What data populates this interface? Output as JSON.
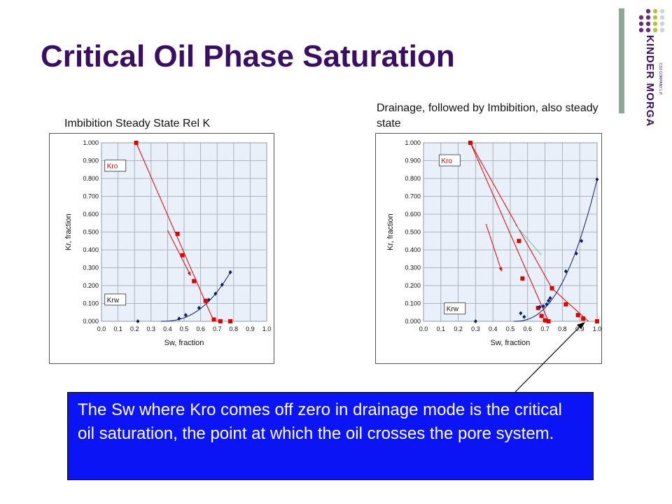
{
  "slide": {
    "title": "Critical Oil Phase Saturation",
    "callout_text": "The Sw where Kro comes off zero in drainage mode is the critical oil saturation, the point at which the oil crosses the pore system.",
    "logo_text": "KINDER MORGAN",
    "logo_subtext": "CO2 COMPANY L.P."
  },
  "colors": {
    "title": "#3a0f63",
    "kro": "#e00000",
    "krw": "#0a1a6e",
    "plot_bg": "#e9f0fa",
    "callout": "#0a14f5",
    "guide": "#6fb8a8"
  },
  "chart_data": [
    {
      "type": "scatter",
      "caption": "Imbibition Steady State Rel K",
      "xlabel": "Sw, fraction",
      "ylabel": "Kr, fraction",
      "xlim": [
        0.0,
        1.0
      ],
      "ylim": [
        0.0,
        1.0
      ],
      "x_ticks": [
        "0.0",
        "0.1",
        "0.2",
        "0.3",
        "0.4",
        "0.5",
        "0.6",
        "0.7",
        "0.8",
        "0.9",
        "1.0"
      ],
      "y_ticks": [
        "0.000",
        "0.100",
        "0.200",
        "0.300",
        "0.400",
        "0.500",
        "0.600",
        "0.700",
        "0.800",
        "0.900",
        "1.000"
      ],
      "grid": true,
      "series": [
        {
          "name": "Kro",
          "color": "#e00000",
          "marker": "square",
          "x": [
            0.21,
            0.46,
            0.49,
            0.56,
            0.63,
            0.68,
            0.72,
            0.78
          ],
          "y": [
            1.0,
            0.49,
            0.37,
            0.225,
            0.115,
            0.01,
            0.0,
            0.0
          ]
        },
        {
          "name": "Krw",
          "color": "#0a1a6e",
          "marker": "diamond",
          "x": [
            0.22,
            0.47,
            0.51,
            0.59,
            0.65,
            0.69,
            0.73,
            0.78
          ],
          "y": [
            0.0,
            0.015,
            0.035,
            0.075,
            0.12,
            0.155,
            0.205,
            0.275
          ]
        }
      ],
      "annotations": [
        {
          "type": "arrow",
          "color": "#e00000",
          "from": [
            0.4,
            0.51
          ],
          "to": [
            0.54,
            0.255
          ]
        }
      ]
    },
    {
      "type": "scatter",
      "caption": "Drainage, followed by Imbibition, also steady state",
      "xlabel": "Sw, fraction",
      "ylabel": "Kr, fraction",
      "xlim": [
        0.0,
        1.0
      ],
      "ylim": [
        0.0,
        1.0
      ],
      "x_ticks": [
        "0.0",
        "0.1",
        "0.2",
        "0.3",
        "0.4",
        "0.5",
        "0.6",
        "0.7",
        "0.8",
        "0.9",
        "1.0"
      ],
      "y_ticks": [
        "0.000",
        "0.100",
        "0.200",
        "0.300",
        "0.400",
        "0.500",
        "0.600",
        "0.700",
        "0.800",
        "0.900",
        "1.000"
      ],
      "grid": true,
      "series": [
        {
          "name": "Kro",
          "color": "#e00000",
          "marker": "square",
          "x": [
            0.27,
            0.55,
            0.57,
            0.66,
            0.68,
            0.7,
            0.72,
            0.74,
            0.82,
            0.89,
            0.92,
            1.0
          ],
          "y": [
            1.0,
            0.45,
            0.24,
            0.075,
            0.03,
            0.005,
            0.0,
            0.185,
            0.095,
            0.035,
            0.015,
            0.0
          ]
        },
        {
          "name": "Krw",
          "color": "#0a1a6e",
          "marker": "diamond",
          "x": [
            0.3,
            0.56,
            0.58,
            0.67,
            0.69,
            0.71,
            0.72,
            0.73,
            0.82,
            0.88,
            0.91,
            1.0
          ],
          "y": [
            0.0,
            0.045,
            0.025,
            0.08,
            0.085,
            0.095,
            0.115,
            0.13,
            0.28,
            0.38,
            0.45,
            0.795
          ]
        }
      ],
      "annotations": [
        {
          "type": "arrow",
          "color": "#e00000",
          "from": [
            0.36,
            0.545
          ],
          "to": [
            0.45,
            0.28
          ]
        },
        {
          "type": "line",
          "color": "#6fb8a8",
          "from": [
            0.53,
            0.54
          ],
          "to": [
            0.68,
            0.37
          ]
        }
      ]
    }
  ]
}
